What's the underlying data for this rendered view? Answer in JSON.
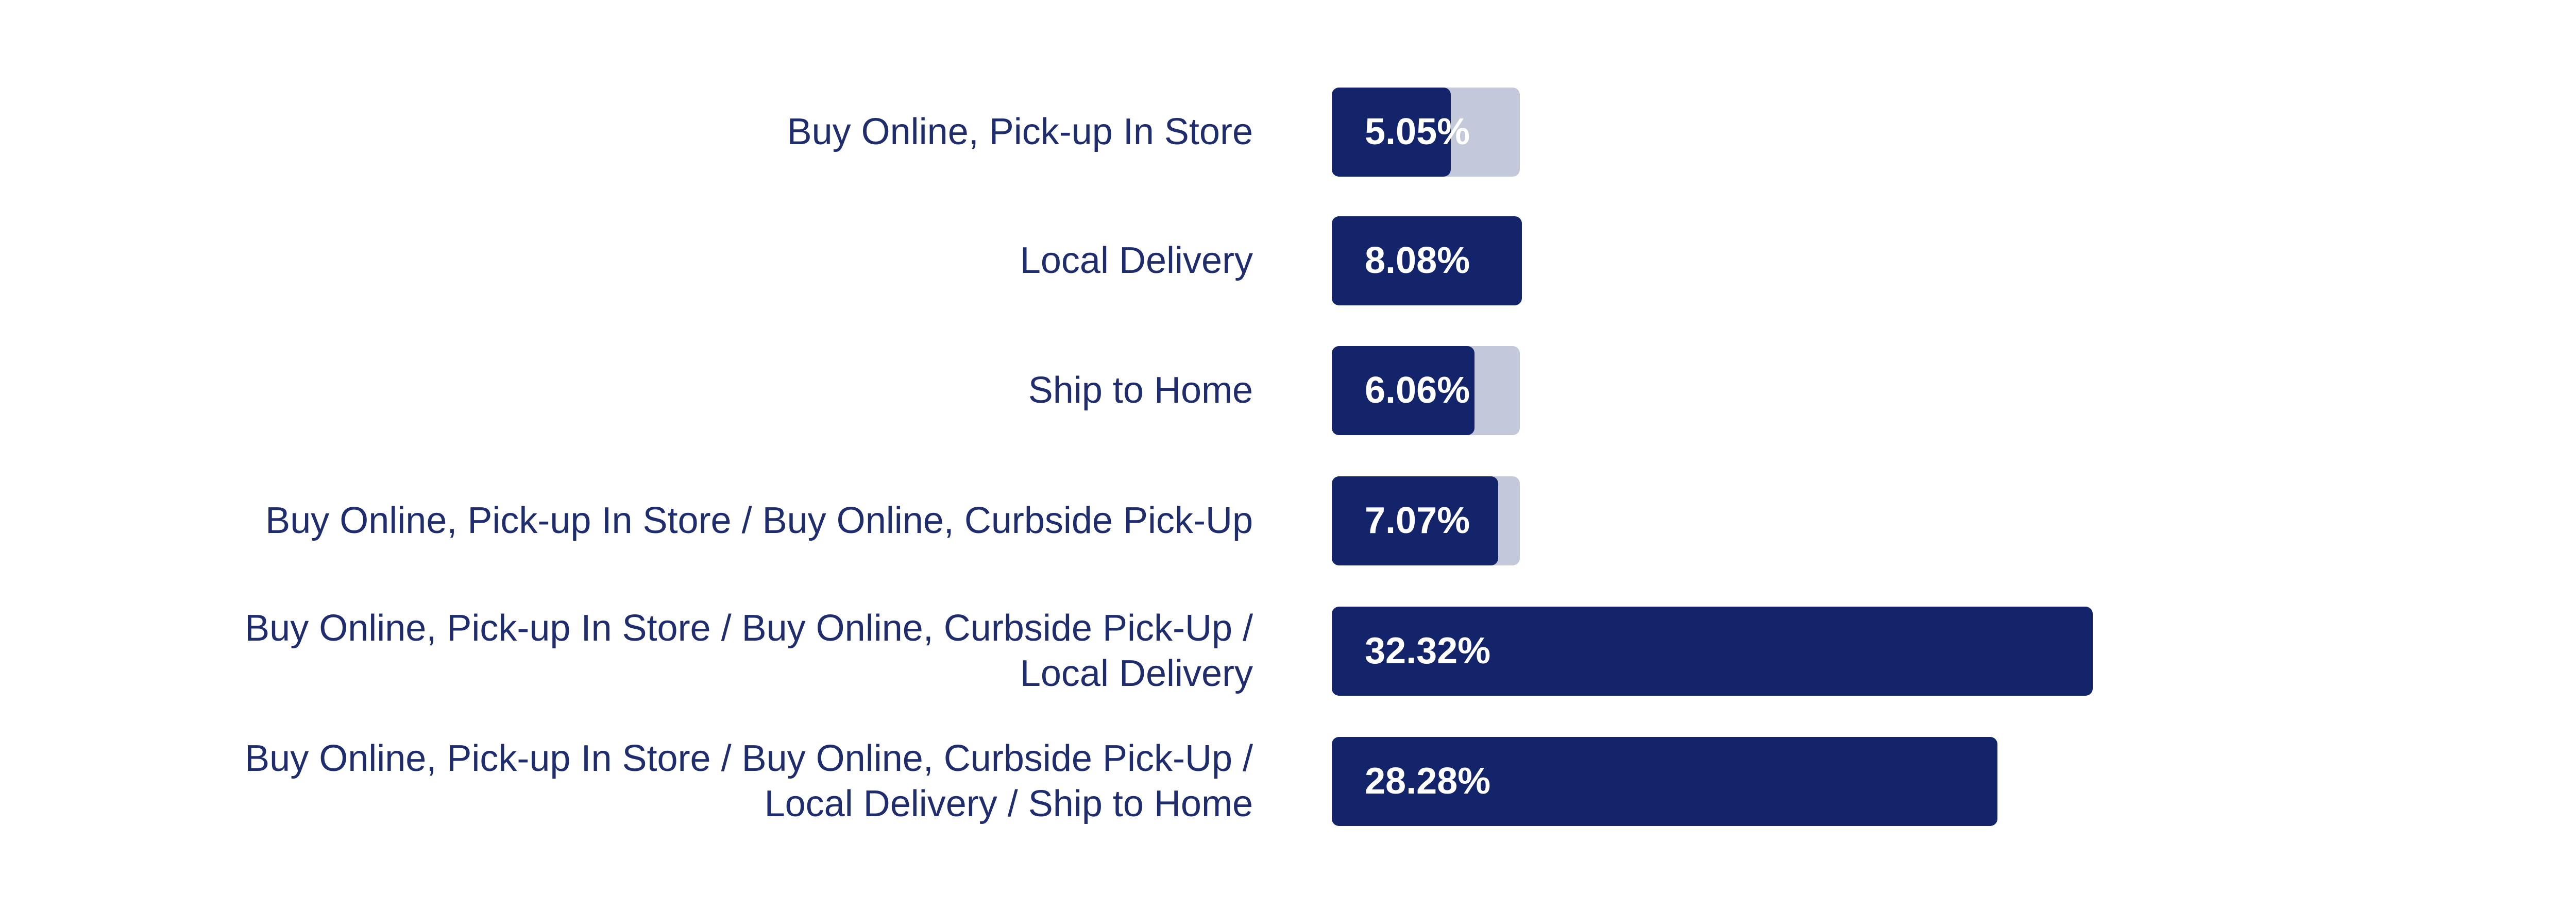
{
  "chart_data": {
    "type": "bar",
    "orientation": "horizontal",
    "categories": [
      "Buy Online, Pick-up In Store",
      "Local Delivery",
      "Ship to Home",
      "Buy Online, Pick-up In Store / Buy Online, Curbside Pick-Up",
      "Buy Online, Pick-up In Store / Buy Online, Curbside Pick-Up / Local Delivery",
      "Buy Online, Pick-up In Store / Buy Online, Curbside Pick-Up / Local Delivery / Ship to Home"
    ],
    "values": [
      5.05,
      8.08,
      6.06,
      7.07,
      32.32,
      28.28
    ],
    "value_labels": [
      "5.05%",
      "8.08%",
      "6.06%",
      "7.07%",
      "32.32%",
      "28.28%"
    ],
    "color": "#13246b"
  }
}
